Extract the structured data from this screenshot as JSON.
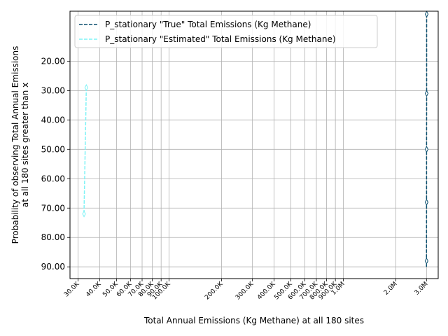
{
  "chart_data": {
    "type": "line",
    "title": "",
    "xlabel": "Total Annual Emissions (Kg Methane) at all 180 sites",
    "ylabel_line1": "Probability of observing Total Annual Emissions",
    "ylabel_line2": "at all 180 sites greater than x",
    "x_scale": "log",
    "xlim": [
      27000,
      3500000
    ],
    "ylim": [
      94,
      3
    ],
    "grid": true,
    "legend_position": "top-left",
    "x_ticks": [
      {
        "value": 30000,
        "label": "30.0K"
      },
      {
        "value": 40000,
        "label": "40.0K"
      },
      {
        "value": 50000,
        "label": "50.0K"
      },
      {
        "value": 60000,
        "label": "60.0K"
      },
      {
        "value": 70000,
        "label": "70.0K"
      },
      {
        "value": 80000,
        "label": "80.0K"
      },
      {
        "value": 90000,
        "label": "90.0K"
      },
      {
        "value": 100000,
        "label": "100.0K"
      },
      {
        "value": 200000,
        "label": "200.0K"
      },
      {
        "value": 300000,
        "label": "300.0K"
      },
      {
        "value": 400000,
        "label": "400.0K"
      },
      {
        "value": 500000,
        "label": "500.0K"
      },
      {
        "value": 600000,
        "label": "600.0K"
      },
      {
        "value": 700000,
        "label": "700.0K"
      },
      {
        "value": 800000,
        "label": "800.0K"
      },
      {
        "value": 900000,
        "label": "900.0K"
      },
      {
        "value": 1000000,
        "label": "1.0M"
      },
      {
        "value": 2000000,
        "label": "2.0M"
      },
      {
        "value": 3000000,
        "label": "3.0M"
      }
    ],
    "y_ticks": [
      {
        "value": 20,
        "label": "20.00"
      },
      {
        "value": 30,
        "label": "30.00"
      },
      {
        "value": 40,
        "label": "40.00"
      },
      {
        "value": 50,
        "label": "50.00"
      },
      {
        "value": 60,
        "label": "60.00"
      },
      {
        "value": 70,
        "label": "70.00"
      },
      {
        "value": 80,
        "label": "80.00"
      },
      {
        "value": 90,
        "label": "90.00"
      }
    ],
    "series": [
      {
        "name": "P_stationary \"True\" Total Emissions (Kg Methane)",
        "color": "#0a4f6e",
        "dash": "dashed",
        "marker": "thin-diamond",
        "points": [
          {
            "x": 3005000,
            "y": 4
          },
          {
            "x": 3004000,
            "y": 31
          },
          {
            "x": 3003000,
            "y": 50
          },
          {
            "x": 3002000,
            "y": 68
          },
          {
            "x": 3000000,
            "y": 88
          },
          {
            "x": 2998000,
            "y": 90
          }
        ],
        "marker_points": [
          {
            "x": 3005000,
            "y": 4
          },
          {
            "x": 3004000,
            "y": 31
          },
          {
            "x": 3003000,
            "y": 50
          },
          {
            "x": 3002000,
            "y": 68
          },
          {
            "x": 3000000,
            "y": 88
          }
        ]
      },
      {
        "name": "P_stationary \"Estimated\" Total Emissions (Kg Methane)",
        "color": "#7ff3f6",
        "dash": "dashed",
        "marker": "thin-diamond",
        "points": [
          {
            "x": 33500,
            "y": 29
          },
          {
            "x": 32500,
            "y": 72
          }
        ],
        "marker_points": [
          {
            "x": 33500,
            "y": 29
          },
          {
            "x": 32500,
            "y": 72
          }
        ]
      }
    ]
  }
}
